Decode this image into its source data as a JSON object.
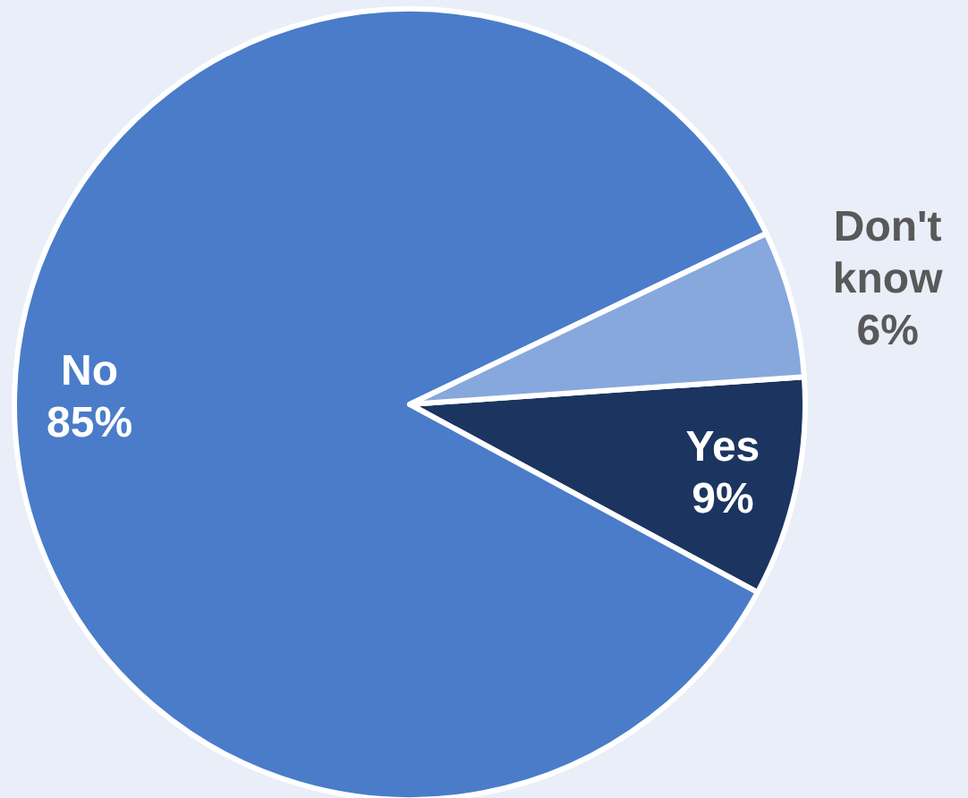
{
  "chart_data": {
    "type": "pie",
    "categories": [
      "Yes",
      "No",
      "Don't know"
    ],
    "values": [
      9,
      85,
      6
    ],
    "colors": [
      "#1b3560",
      "#4a7cc9",
      "#86a8dc"
    ],
    "value_labels": [
      "9%",
      "85%",
      "6%"
    ]
  }
}
